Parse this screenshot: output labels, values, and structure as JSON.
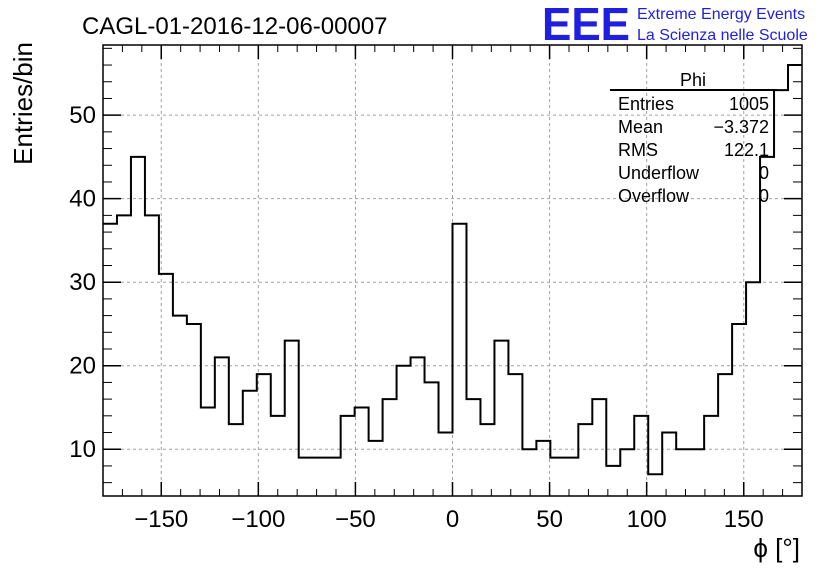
{
  "chart_data": {
    "type": "bar",
    "style": "histogram-step",
    "title": "CAGL-01-2016-12-06-00007",
    "xlabel": "ϕ [°]",
    "ylabel": "Entries/bin",
    "xlim": [
      -180,
      180
    ],
    "ylim": [
      4.4,
      58.4
    ],
    "grid": true,
    "bin_width": 7.2,
    "bin_low_edges": [
      -180,
      -172.8,
      -165.6,
      -158.4,
      -151.2,
      -144,
      -136.8,
      -129.6,
      -122.4,
      -115.2,
      -108,
      -100.8,
      -93.6,
      -86.4,
      -79.2,
      -72,
      -64.8,
      -57.6,
      -50.4,
      -43.2,
      -36,
      -28.8,
      -21.6,
      -14.4,
      -7.2,
      0,
      7.2,
      14.4,
      21.6,
      28.8,
      36,
      43.2,
      50.4,
      57.6,
      64.8,
      72,
      79.2,
      86.4,
      93.6,
      100.8,
      108,
      115.2,
      122.4,
      129.6,
      136.8,
      144,
      151.2,
      158.4,
      165.6,
      172.8
    ],
    "values": [
      37,
      38,
      45,
      38,
      31,
      26,
      25,
      15,
      21,
      13,
      17,
      19,
      14,
      23,
      9,
      9,
      9,
      14,
      15,
      11,
      16,
      20,
      21,
      18,
      12,
      37,
      16,
      13,
      23,
      19,
      10,
      11,
      9,
      9,
      13,
      16,
      8,
      10,
      14,
      7,
      12,
      10,
      10,
      14,
      19,
      25,
      30,
      45,
      53,
      56
    ],
    "x_ticks": [
      -150,
      -100,
      -50,
      0,
      50,
      100,
      150
    ],
    "x_tick_labels": [
      "−150",
      "−100",
      "−50",
      "0",
      "50",
      "100",
      "150"
    ],
    "y_ticks": [
      10,
      20,
      30,
      40,
      50
    ],
    "y_tick_labels": [
      "10",
      "20",
      "30",
      "40",
      "50"
    ],
    "stats_box": {
      "title": "Phi",
      "placement": "top-right",
      "rows": [
        {
          "label": "Entries",
          "value": "1005"
        },
        {
          "label": "Mean",
          "value": "−3.372"
        },
        {
          "label": "RMS",
          "value": "122.1"
        },
        {
          "label": "Underflow",
          "value": "0"
        },
        {
          "label": "Overflow",
          "value": "0"
        }
      ]
    }
  },
  "logo": {
    "mark": "EEE",
    "line1": "Extreme Energy Events",
    "line2": "La Scienza nelle Scuole",
    "color": "#1f1fe0"
  },
  "colors": {
    "line": "#000000",
    "grid": "#a0a0a0"
  }
}
